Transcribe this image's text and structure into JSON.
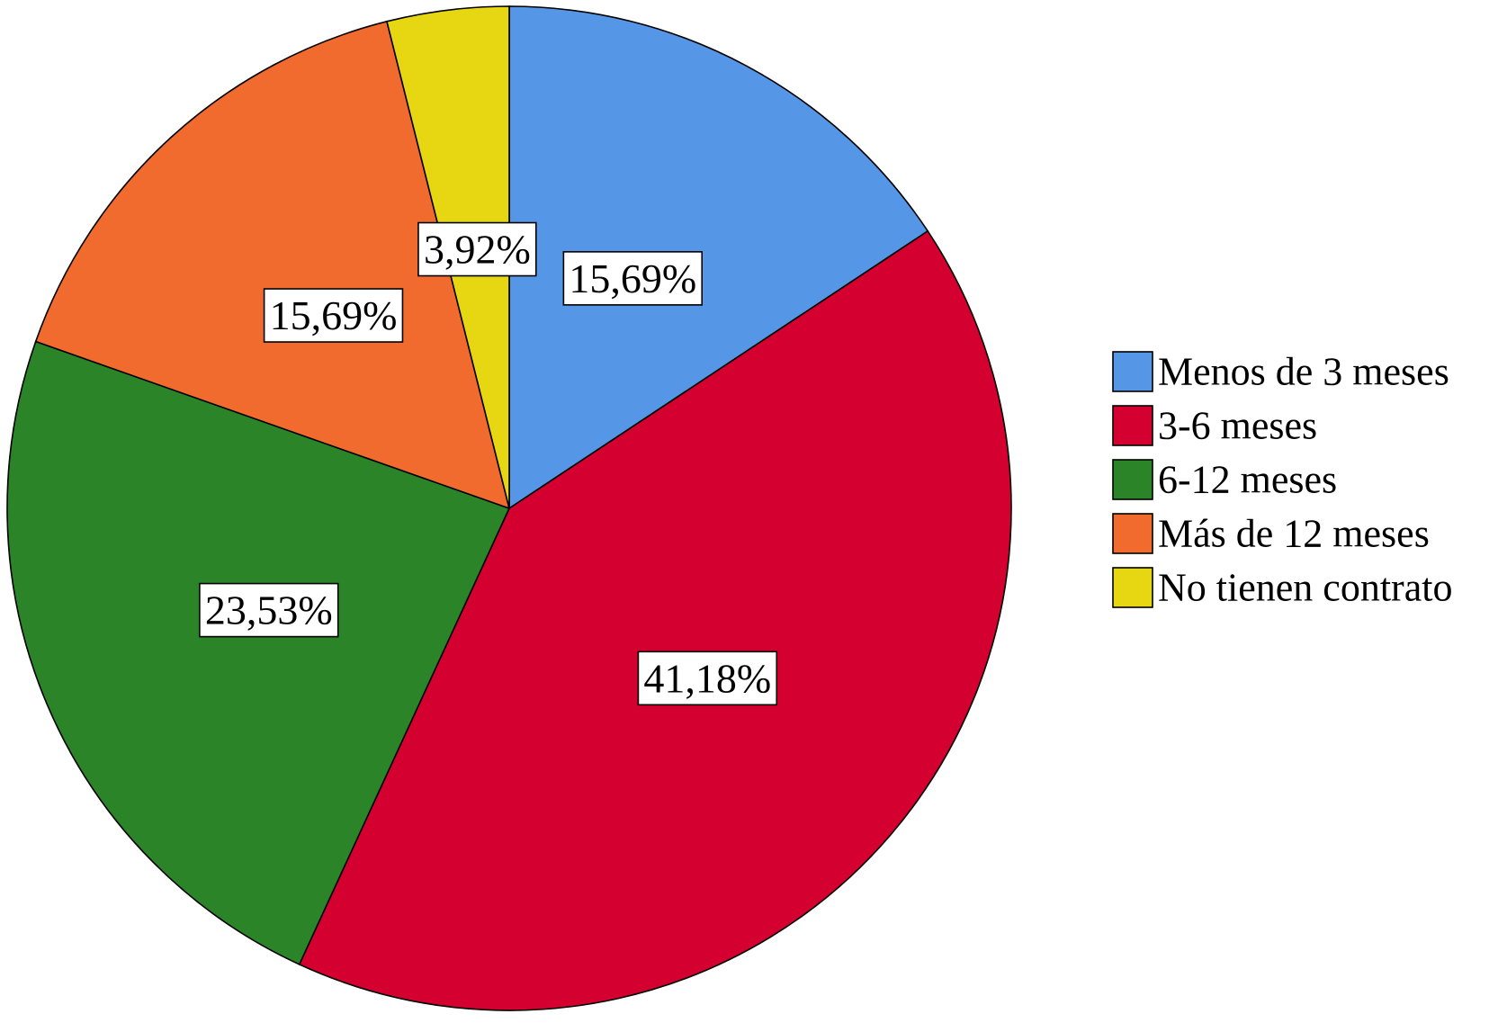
{
  "chart_data": {
    "type": "pie",
    "start_angle_deg": 0,
    "direction": "clockwise",
    "legend_position": "right",
    "value_format": "percent-comma-2",
    "slices": [
      {
        "label": "Menos de 3 meses",
        "value": 15.69,
        "value_label": "15,69%",
        "color": "#5597E6"
      },
      {
        "label": "3-6 meses",
        "value": 41.18,
        "value_label": "41,18%",
        "color": "#D4002F"
      },
      {
        "label": "6-12 meses",
        "value": 23.53,
        "value_label": "23,53%",
        "color": "#2B8428"
      },
      {
        "label": "Más de 12 meses",
        "value": 15.69,
        "value_label": "15,69%",
        "color": "#F26B2E"
      },
      {
        "label": "No tienen contrato",
        "value": 3.92,
        "value_label": "3,92%",
        "color": "#E6D712"
      }
    ]
  }
}
